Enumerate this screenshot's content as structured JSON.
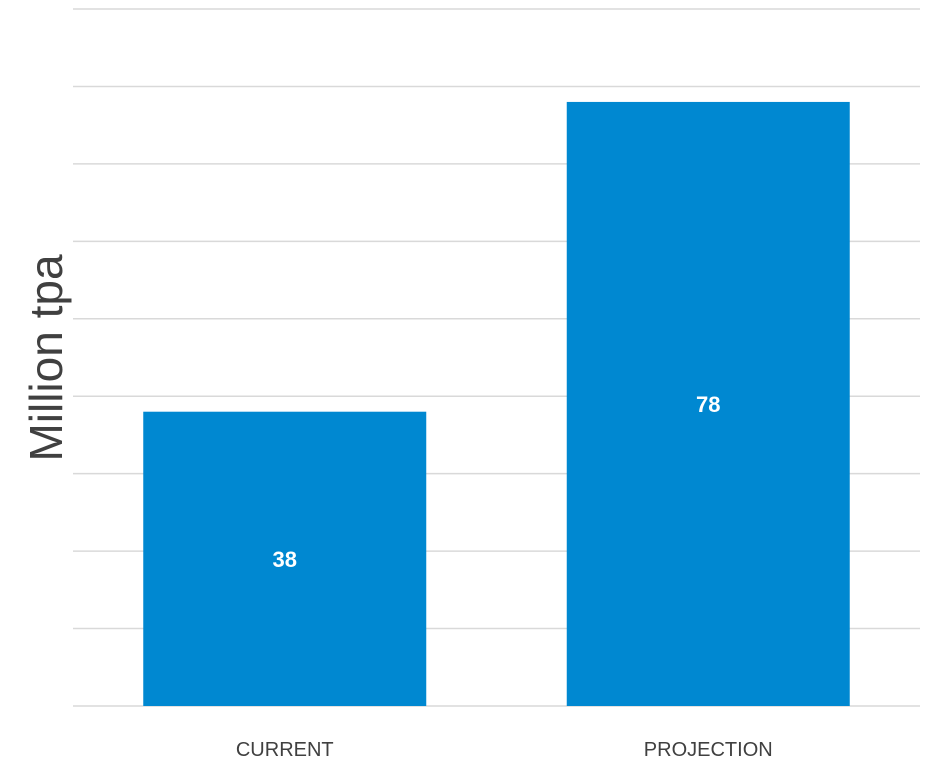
{
  "chart_data": {
    "type": "bar",
    "categories": [
      "CURRENT",
      "PROJECTION"
    ],
    "values": [
      38,
      78
    ],
    "data_labels": [
      "38",
      "78"
    ],
    "title": "",
    "xlabel": "",
    "ylabel": "Million tpa",
    "ylim": [
      0,
      90
    ],
    "grid_step": 10,
    "grid": true,
    "y_tick_labels_visible": false,
    "bar_color": "#0088d1",
    "data_label_color": "#ffffff",
    "gridline_color": "#d9d9d9"
  }
}
